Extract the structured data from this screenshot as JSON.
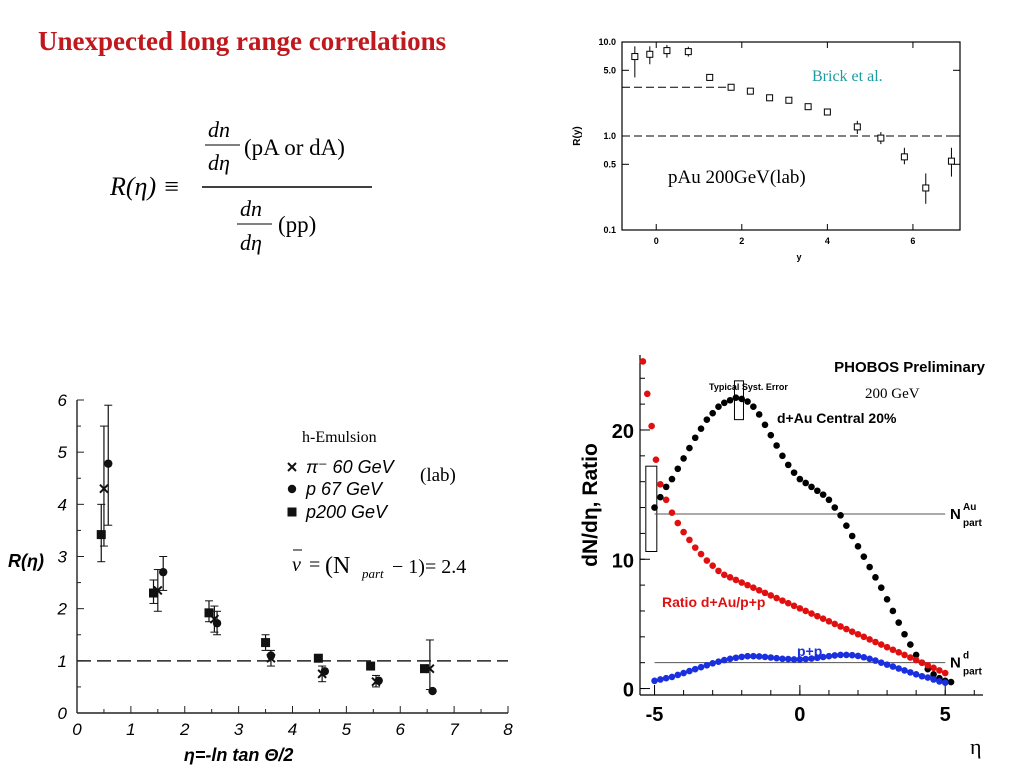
{
  "slide": {
    "title": "Unexpected long range correlations",
    "formula": {
      "lhs": "R(η) ≡",
      "num_top": "dn",
      "num_bottom": "dη",
      "num_arg": "(pA or dA)",
      "den_top": "dn",
      "den_bottom": "dη",
      "den_arg": "(pp)"
    },
    "eta_label": "η"
  },
  "chart_data": [
    {
      "id": "pau",
      "type": "scatter",
      "scale": "log-y",
      "xlabel": "y",
      "ylabel": "R(y)",
      "xlim": [
        -0.8,
        7.1
      ],
      "ylim": [
        0.1,
        10.0
      ],
      "x_ticks": [
        0,
        2,
        4,
        6
      ],
      "y_ticks": [
        {
          "value": 10.0,
          "label": "10.0"
        },
        {
          "value": 5.0,
          "label": "5.0"
        },
        {
          "value": 1.0,
          "label": "1.0"
        },
        {
          "value": 0.5,
          "label": "0.5"
        },
        {
          "value": 0.1,
          "label": "0.1"
        }
      ],
      "annotations": [
        "Brick et al.",
        "pAu 200GeV(lab)"
      ],
      "reference_lines": [
        {
          "y": 1.0,
          "style": "dashed",
          "from_x": -0.8,
          "to_x": 7.1
        },
        {
          "y": 3.3,
          "style": "dashed",
          "from_x": -0.8,
          "to_x": 1.8
        }
      ],
      "points": [
        {
          "x": -0.5,
          "y": 7.0,
          "lo": 4.2,
          "hi": 9.0
        },
        {
          "x": -0.15,
          "y": 7.4,
          "lo": 5.8,
          "hi": 9.0
        },
        {
          "x": 0.25,
          "y": 8.1,
          "lo": 6.8,
          "hi": 9.3
        },
        {
          "x": 0.75,
          "y": 7.9,
          "lo": 7.0,
          "hi": 8.9
        },
        {
          "x": 1.25,
          "y": 4.2
        },
        {
          "x": 1.75,
          "y": 3.3
        },
        {
          "x": 2.2,
          "y": 3.0
        },
        {
          "x": 2.65,
          "y": 2.55
        },
        {
          "x": 3.1,
          "y": 2.4
        },
        {
          "x": 3.55,
          "y": 2.05
        },
        {
          "x": 4.0,
          "y": 1.8
        },
        {
          "x": 4.7,
          "y": 1.25,
          "lo": 1.05,
          "hi": 1.45
        },
        {
          "x": 5.25,
          "y": 0.95,
          "lo": 0.82,
          "hi": 1.1
        },
        {
          "x": 5.8,
          "y": 0.6,
          "lo": 0.5,
          "hi": 0.75
        },
        {
          "x": 6.3,
          "y": 0.28,
          "lo": 0.19,
          "hi": 0.4
        },
        {
          "x": 6.9,
          "y": 0.54,
          "lo": 0.37,
          "hi": 0.75
        }
      ]
    },
    {
      "id": "emulsion",
      "type": "scatter",
      "xlabel": "η=-ln tan Θ/2",
      "ylabel": "R(η)",
      "xlim": [
        0,
        8
      ],
      "ylim": [
        0,
        6
      ],
      "x_ticks": [
        0,
        1,
        2,
        3,
        4,
        5,
        6,
        7,
        8
      ],
      "y_ticks": [
        0,
        1,
        2,
        3,
        4,
        5,
        6
      ],
      "annotations": [
        "h-Emulsion",
        "(lab)"
      ],
      "nu_formula": {
        "lhs": "ν",
        "eq": "=",
        "paren": "(N",
        "sub": "part",
        "rest": "− 1)= 2.4"
      },
      "reference_lines": [
        {
          "y": 1.0,
          "style": "dashed"
        }
      ],
      "legend": [
        {
          "marker": "cross",
          "label": "π⁻ 60 GeV"
        },
        {
          "marker": "circle",
          "label": "p 67 GeV"
        },
        {
          "marker": "square",
          "label": "p200 GeV"
        }
      ],
      "series": [
        {
          "name": "π⁻ 60 GeV",
          "marker": "cross",
          "points": [
            {
              "x": 0.5,
              "y": 4.3,
              "lo": 3.2,
              "hi": 5.5
            },
            {
              "x": 1.5,
              "y": 2.35,
              "lo": 1.95,
              "hi": 2.75
            },
            {
              "x": 2.55,
              "y": 1.8,
              "lo": 1.55,
              "hi": 2.05
            },
            {
              "x": 3.6,
              "y": 1.05,
              "lo": 0.9,
              "hi": 1.2
            },
            {
              "x": 4.55,
              "y": 0.75,
              "lo": 0.6,
              "hi": 0.9
            },
            {
              "x": 5.55,
              "y": 0.6,
              "lo": 0.5,
              "hi": 0.72
            },
            {
              "x": 6.55,
              "y": 0.85,
              "lo": 0.45,
              "hi": 1.4
            }
          ]
        },
        {
          "name": "p 67 GeV",
          "marker": "circle",
          "points": [
            {
              "x": 0.58,
              "y": 4.78,
              "lo": 3.6,
              "hi": 5.9
            },
            {
              "x": 1.6,
              "y": 2.7,
              "lo": 2.35,
              "hi": 3.0
            },
            {
              "x": 2.6,
              "y": 1.72,
              "lo": 1.5,
              "hi": 1.95
            },
            {
              "x": 3.6,
              "y": 1.1
            },
            {
              "x": 4.6,
              "y": 0.8
            },
            {
              "x": 5.6,
              "y": 0.62
            },
            {
              "x": 6.6,
              "y": 0.42
            }
          ]
        },
        {
          "name": "p200 GeV",
          "marker": "square",
          "points": [
            {
              "x": 0.45,
              "y": 3.42,
              "lo": 2.9,
              "hi": 4.0
            },
            {
              "x": 1.42,
              "y": 2.3,
              "lo": 2.1,
              "hi": 2.55
            },
            {
              "x": 2.45,
              "y": 1.92,
              "lo": 1.75,
              "hi": 2.15
            },
            {
              "x": 3.5,
              "y": 1.35,
              "lo": 1.2,
              "hi": 1.5
            },
            {
              "x": 4.48,
              "y": 1.05
            },
            {
              "x": 5.45,
              "y": 0.9
            },
            {
              "x": 6.45,
              "y": 0.85
            }
          ]
        }
      ]
    },
    {
      "id": "phobos",
      "type": "scatter",
      "title": "PHOBOS Preliminary",
      "subtitle": "200 GeV",
      "ylabel": "dN/dη, Ratio",
      "xlabel": "η",
      "xlim": [
        -5.5,
        6.3
      ],
      "ylim": [
        -0.5,
        25.8
      ],
      "x_ticks": [
        -5,
        0,
        5
      ],
      "y_ticks": [
        0,
        10,
        20
      ],
      "colors": {
        "dau": "#000000",
        "ratio": "#e01010",
        "pp": "#1a2fe0"
      },
      "annotations": {
        "syst_error": "Typical Syst. Error",
        "npart_au": "N",
        "npart_au_sup": "Au",
        "npart_au_sub": "part",
        "npart_d": "N",
        "npart_d_sup": "d",
        "npart_d_sub": "part"
      },
      "reference_lines": [
        {
          "y": 13.5,
          "label": "N_part^Au"
        },
        {
          "y": 2.0,
          "label": "N_part^d"
        }
      ],
      "series": [
        {
          "name": "d+Au Central 20%",
          "color": "#000000",
          "x": [
            -5.0,
            -4.8,
            -4.6,
            -4.4,
            -4.2,
            -4.0,
            -3.8,
            -3.6,
            -3.4,
            -3.2,
            -3.0,
            -2.8,
            -2.6,
            -2.4,
            -2.2,
            -2.0,
            -1.8,
            -1.6,
            -1.4,
            -1.2,
            -1.0,
            -0.8,
            -0.6,
            -0.4,
            -0.2,
            0.0,
            0.2,
            0.4,
            0.6,
            0.8,
            1.0,
            1.2,
            1.4,
            1.6,
            1.8,
            2.0,
            2.2,
            2.4,
            2.6,
            2.8,
            3.0,
            3.2,
            3.4,
            3.6,
            3.8,
            4.0,
            4.2,
            4.4,
            4.6,
            4.8,
            5.0,
            5.2
          ],
          "y": [
            14.0,
            14.8,
            15.6,
            16.2,
            17.0,
            17.8,
            18.6,
            19.4,
            20.1,
            20.8,
            21.3,
            21.8,
            22.1,
            22.3,
            22.5,
            22.4,
            22.2,
            21.8,
            21.2,
            20.4,
            19.6,
            18.8,
            18.0,
            17.3,
            16.7,
            16.2,
            15.9,
            15.6,
            15.3,
            15.0,
            14.6,
            14.0,
            13.4,
            12.6,
            11.8,
            11.0,
            10.2,
            9.4,
            8.6,
            7.8,
            6.9,
            6.0,
            5.1,
            4.2,
            3.4,
            2.6,
            2.0,
            1.5,
            1.1,
            0.8,
            0.6,
            0.5
          ]
        },
        {
          "name": "Ratio d+Au/p+p",
          "color": "#e01010",
          "x": [
            -5.4,
            -5.25,
            -5.1,
            -4.95,
            -4.8,
            -4.6,
            -4.4,
            -4.2,
            -4.0,
            -3.8,
            -3.6,
            -3.4,
            -3.2,
            -3.0,
            -2.8,
            -2.6,
            -2.4,
            -2.2,
            -2.0,
            -1.8,
            -1.6,
            -1.4,
            -1.2,
            -1.0,
            -0.8,
            -0.6,
            -0.4,
            -0.2,
            0.0,
            0.2,
            0.4,
            0.6,
            0.8,
            1.0,
            1.2,
            1.4,
            1.6,
            1.8,
            2.0,
            2.2,
            2.4,
            2.6,
            2.8,
            3.0,
            3.2,
            3.4,
            3.6,
            3.8,
            4.0,
            4.2,
            4.4,
            4.6,
            4.8,
            5.0
          ],
          "y": [
            25.3,
            22.8,
            20.3,
            17.7,
            15.8,
            14.6,
            13.6,
            12.8,
            12.1,
            11.5,
            10.9,
            10.4,
            9.9,
            9.5,
            9.1,
            8.8,
            8.6,
            8.4,
            8.2,
            8.0,
            7.8,
            7.6,
            7.4,
            7.2,
            7.0,
            6.8,
            6.6,
            6.4,
            6.2,
            6.0,
            5.8,
            5.6,
            5.4,
            5.2,
            5.0,
            4.8,
            4.6,
            4.4,
            4.2,
            4.0,
            3.8,
            3.6,
            3.4,
            3.2,
            3.0,
            2.8,
            2.6,
            2.4,
            2.2,
            2.0,
            1.8,
            1.6,
            1.4,
            1.2
          ]
        },
        {
          "name": "p+p",
          "color": "#1a2fe0",
          "x": [
            -5.0,
            -4.8,
            -4.6,
            -4.4,
            -4.2,
            -4.0,
            -3.8,
            -3.6,
            -3.4,
            -3.2,
            -3.0,
            -2.8,
            -2.6,
            -2.4,
            -2.2,
            -2.0,
            -1.8,
            -1.6,
            -1.4,
            -1.2,
            -1.0,
            -0.8,
            -0.6,
            -0.4,
            -0.2,
            0.0,
            0.2,
            0.4,
            0.6,
            0.8,
            1.0,
            1.2,
            1.4,
            1.6,
            1.8,
            2.0,
            2.2,
            2.4,
            2.6,
            2.8,
            3.0,
            3.2,
            3.4,
            3.6,
            3.8,
            4.0,
            4.2,
            4.4,
            4.6,
            4.8,
            5.0
          ],
          "y": [
            0.6,
            0.7,
            0.8,
            0.9,
            1.05,
            1.2,
            1.35,
            1.5,
            1.65,
            1.8,
            1.95,
            2.08,
            2.2,
            2.3,
            2.38,
            2.45,
            2.5,
            2.5,
            2.48,
            2.45,
            2.4,
            2.35,
            2.3,
            2.28,
            2.25,
            2.25,
            2.28,
            2.32,
            2.38,
            2.44,
            2.5,
            2.56,
            2.6,
            2.6,
            2.58,
            2.52,
            2.42,
            2.3,
            2.16,
            2.0,
            1.85,
            1.7,
            1.55,
            1.4,
            1.25,
            1.1,
            0.95,
            0.85,
            0.7,
            0.55,
            0.45
          ]
        }
      ]
    }
  ]
}
